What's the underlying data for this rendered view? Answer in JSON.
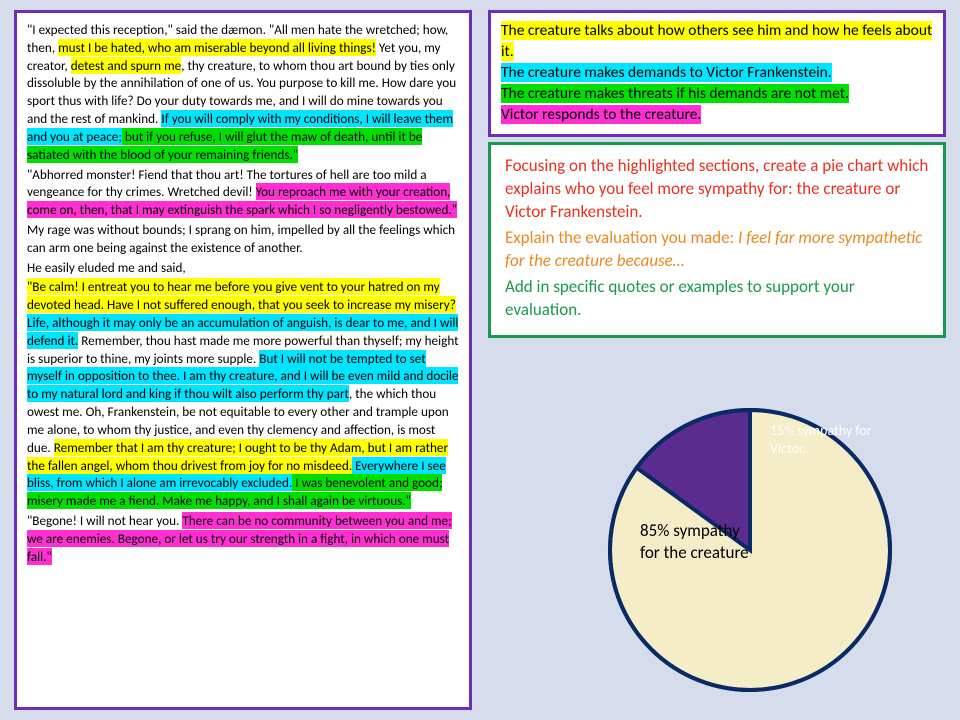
{
  "legend": {
    "l1": "The creature talks about how others see him and how he feels about it.",
    "l2": "The creature makes demands to Victor Frankenstein.",
    "l3": "The creature makes threats if his demands are not met.",
    "l4": "Victor responds to the creature."
  },
  "task": {
    "t1": "Focusing on the highlighted sections, create a pie chart which explains who you feel more sympathy for: the creature or Victor Frankenstein.",
    "t2a": "Explain the evaluation you made: ",
    "t2b": "I feel far more sympathetic for the creature because…",
    "t3": "Add in specific quotes or examples to support your evaluation."
  },
  "passage": {
    "p1a": "\"I expected this reception,\" said the dæmon. \"All men hate the wretched; how, then, ",
    "p1b": "must I be hated, who am miserable beyond all living things!",
    "p1c": " Yet you, my creator, ",
    "p1d": "detest and spurn me",
    "p1e": ", thy creature, to whom thou art bound by ties only dissoluble by the annihilation of one of us. You purpose to kill me. How dare you sport thus with life? Do your duty towards me, and I will do mine towards you and the rest of mankind. ",
    "p1f": "If you will comply with my conditions, I will leave them and you at peace;",
    "p1g": " but if you refuse, I will glut the maw of death, until it be satiated with the blood of your remaining friends.\"",
    "p2a": "\"Abhorred monster! Fiend that thou art! The tortures of hell are too mild a vengeance for thy crimes. Wretched devil! ",
    "p2b": "You reproach me with your creation, come on, then, that I may extinguish the spark which I so negligently bestowed.\"",
    "p3": "My rage was without bounds; I sprang on him, impelled by all the feelings which can arm one being against the existence of another.",
    "p4": "He easily eluded me and said,",
    "p5a": "\"Be calm! I entreat you to hear me before you give vent to your hatred on my devoted head. Have I not suffered enough, that you seek to increase my misery?",
    "p5b": " Life, although it may only be an accumulation of anguish, is dear to me, and I will defend it.",
    "p5c": " Remember, thou hast made me more powerful than thyself; my height is superior to thine, my joints more supple. ",
    "p5d": "But I will not be tempted to set myself in opposition to thee. I am thy creature, and I will be even mild and docile to my natural lord and king if thou wilt also perform thy part",
    "p5e": ", the which thou owest me. Oh, Frankenstein, be not equitable to every other and trample upon me alone, to whom thy justice, and even thy clemency and affection, is most due. ",
    "p5f": "Remember that I am thy creature; I ought to be thy Adam, but I am rather the fallen angel, whom thou drivest from joy for no misdeed.",
    "p5g": " Everywhere I see bliss, from which I alone am irrevocably excluded.",
    "p5h": " I was benevolent and good; misery made me a fiend. Make me happy, and I shall again be virtuous.\"",
    "p6a": "\"Begone! I will not hear you. ",
    "p6b": "There can be no community between you and me; we are enemies. Begone, or let us try our strength in a fight, in which one must fall.\""
  },
  "chart": {
    "type": "pie",
    "slices": [
      {
        "label": "85% sympathy for the creature",
        "value": 85,
        "color": "#f5ecc8"
      },
      {
        "label": "15% sympathy for Victor.",
        "value": 15,
        "color": "#5b2c8f"
      }
    ],
    "stroke_color": "#0a2a66",
    "stroke_width": 4,
    "radius": 140,
    "label_a_fontsize": 17,
    "label_b_fontsize": 14,
    "label_b_color": "#ffffff",
    "background": "transparent"
  },
  "colors": {
    "page_bg": "#d6dcec",
    "purple_border": "#6b2fb3",
    "green_border": "#1a9850",
    "hl_yellow": "#ffff00",
    "hl_cyan": "#00e5ff",
    "hl_green": "#00e000",
    "hl_magenta": "#ff2fd4",
    "red_text": "#e83020",
    "orange_text": "#e88a20",
    "green_text": "#1a9850"
  }
}
